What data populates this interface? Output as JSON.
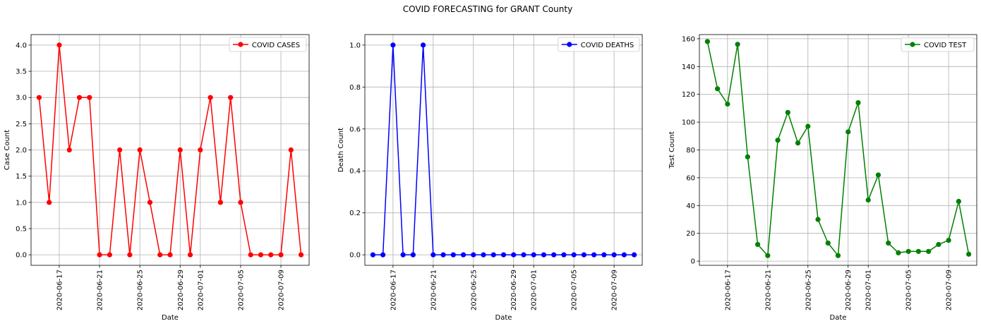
{
  "figure": {
    "suptitle": "COVID FORECASTING for GRANT County"
  },
  "chart_data": [
    {
      "type": "line",
      "title": "",
      "xlabel": "Date",
      "ylabel": "Case Count",
      "x": [
        "2020-06-15",
        "2020-06-16",
        "2020-06-17",
        "2020-06-18",
        "2020-06-19",
        "2020-06-20",
        "2020-06-21",
        "2020-06-22",
        "2020-06-23",
        "2020-06-24",
        "2020-06-25",
        "2020-06-26",
        "2020-06-27",
        "2020-06-28",
        "2020-06-29",
        "2020-06-30",
        "2020-07-01",
        "2020-07-02",
        "2020-07-03",
        "2020-07-04",
        "2020-07-05",
        "2020-07-06",
        "2020-07-07",
        "2020-07-08",
        "2020-07-09",
        "2020-07-10",
        "2020-07-11"
      ],
      "xticks": [
        "2020-06-17",
        "2020-06-21",
        "2020-06-25",
        "2020-06-29",
        "2020-07-01",
        "2020-07-05",
        "2020-07-09"
      ],
      "xlim": [
        "2020-06-14.2",
        "2020-07-11.8"
      ],
      "ylim": [
        -0.2,
        4.2
      ],
      "yticks": [
        "0.0",
        "0.5",
        "1.0",
        "1.5",
        "2.0",
        "2.5",
        "3.0",
        "3.5",
        "4.0"
      ],
      "grid": true,
      "legend_position": "top-right",
      "series": [
        {
          "name": "COVID CASES",
          "color": "#ff0000",
          "values": [
            3,
            1,
            4,
            2,
            3,
            3,
            0,
            0,
            2,
            0,
            2,
            1,
            0,
            0,
            2,
            0,
            2,
            3,
            1,
            3,
            1,
            0,
            0,
            0,
            0,
            2,
            0
          ]
        }
      ]
    },
    {
      "type": "line",
      "title": "",
      "xlabel": "Date",
      "ylabel": "Death Count",
      "x": [
        "2020-06-15",
        "2020-06-16",
        "2020-06-17",
        "2020-06-18",
        "2020-06-19",
        "2020-06-20",
        "2020-06-21",
        "2020-06-22",
        "2020-06-23",
        "2020-06-24",
        "2020-06-25",
        "2020-06-26",
        "2020-06-27",
        "2020-06-28",
        "2020-06-29",
        "2020-06-30",
        "2020-07-01",
        "2020-07-02",
        "2020-07-03",
        "2020-07-04",
        "2020-07-05",
        "2020-07-06",
        "2020-07-07",
        "2020-07-08",
        "2020-07-09",
        "2020-07-10",
        "2020-07-11"
      ],
      "xticks": [
        "2020-06-17",
        "2020-06-21",
        "2020-06-25",
        "2020-06-29",
        "2020-07-01",
        "2020-07-05",
        "2020-07-09"
      ],
      "ylim": [
        -0.05,
        1.05
      ],
      "yticks": [
        "0.0",
        "0.2",
        "0.4",
        "0.6",
        "0.8",
        "1.0"
      ],
      "grid": true,
      "legend_position": "top-right",
      "series": [
        {
          "name": "COVID DEATHS",
          "color": "#0000ff",
          "values": [
            0,
            0,
            1,
            0,
            0,
            1,
            0,
            0,
            0,
            0,
            0,
            0,
            0,
            0,
            0,
            0,
            0,
            0,
            0,
            0,
            0,
            0,
            0,
            0,
            0,
            0,
            0
          ]
        }
      ]
    },
    {
      "type": "line",
      "title": "",
      "xlabel": "Date",
      "ylabel": "Test Count",
      "x": [
        "2020-06-15",
        "2020-06-16",
        "2020-06-17",
        "2020-06-18",
        "2020-06-19",
        "2020-06-20",
        "2020-06-21",
        "2020-06-22",
        "2020-06-23",
        "2020-06-24",
        "2020-06-25",
        "2020-06-26",
        "2020-06-27",
        "2020-06-28",
        "2020-06-29",
        "2020-06-30",
        "2020-07-01",
        "2020-07-02",
        "2020-07-03",
        "2020-07-04",
        "2020-07-05",
        "2020-07-06",
        "2020-07-07",
        "2020-07-08",
        "2020-07-09",
        "2020-07-10",
        "2020-07-11"
      ],
      "xticks": [
        "2020-06-17",
        "2020-06-21",
        "2020-06-25",
        "2020-06-29",
        "2020-07-01",
        "2020-07-05",
        "2020-07-09"
      ],
      "ylim": [
        -3,
        163
      ],
      "yticks": [
        "0",
        "20",
        "40",
        "60",
        "80",
        "100",
        "120",
        "140",
        "160"
      ],
      "grid": true,
      "legend_position": "top-right",
      "series": [
        {
          "name": "COVID TEST",
          "color": "#008000",
          "values": [
            158,
            124,
            113,
            156,
            75,
            12,
            4,
            87,
            107,
            85,
            97,
            30,
            13,
            4,
            93,
            114,
            44,
            62,
            13,
            6,
            7,
            7,
            7,
            12,
            15,
            43,
            5
          ]
        }
      ]
    }
  ]
}
